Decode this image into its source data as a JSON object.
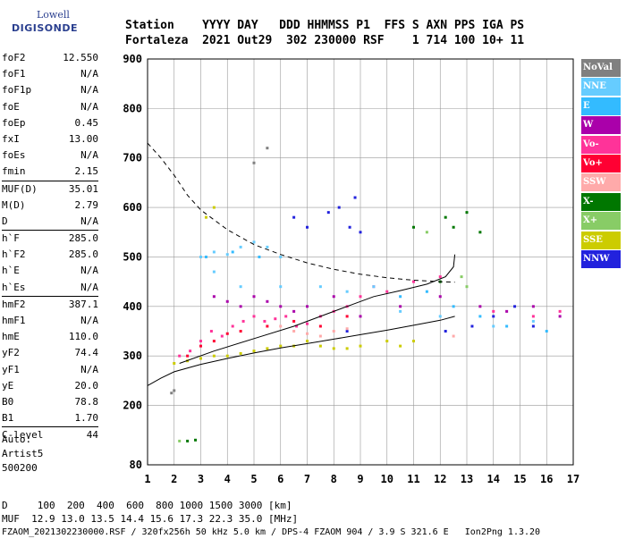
{
  "logo": {
    "line1": "Lowell",
    "line2": "DIGISONDE"
  },
  "header": {
    "labels": "Station    YYYY DAY   DDD HHMMSS P1  FFS S AXN PPS IGA PS",
    "values": "Fortaleza  2021 Out29  302 230000 RSF    1 714 100 10+ 11"
  },
  "params": [
    {
      "name": "foF2",
      "value": "12.550"
    },
    {
      "name": "foF1",
      "value": "N/A"
    },
    {
      "name": "foF1p",
      "value": "N/A"
    },
    {
      "name": "foE",
      "value": "N/A"
    },
    {
      "name": "foEp",
      "value": "0.45"
    },
    {
      "name": "fxI",
      "value": "13.00"
    },
    {
      "name": "foEs",
      "value": "N/A"
    },
    {
      "name": "fmin",
      "value": "2.15"
    },
    {
      "name": "MUF(D)",
      "value": "35.01",
      "sep": true
    },
    {
      "name": "M(D)",
      "value": "2.79"
    },
    {
      "name": "D",
      "value": "N/A"
    },
    {
      "name": "h`F",
      "value": "285.0",
      "sep": true
    },
    {
      "name": "h`F2",
      "value": "285.0"
    },
    {
      "name": "h`E",
      "value": "N/A"
    },
    {
      "name": "h`Es",
      "value": "N/A"
    },
    {
      "name": "hmF2",
      "value": "387.1",
      "sep": true
    },
    {
      "name": "hmF1",
      "value": "N/A"
    },
    {
      "name": "hmE",
      "value": "110.0"
    },
    {
      "name": "yF2",
      "value": "74.4"
    },
    {
      "name": "yF1",
      "value": "N/A"
    },
    {
      "name": "yE",
      "value": "20.0"
    },
    {
      "name": "B0",
      "value": "78.8"
    },
    {
      "name": "B1",
      "value": "1.70"
    },
    {
      "name": "C-level",
      "value": "44",
      "sep": true
    }
  ],
  "auto": {
    "line1": "Auto:",
    "line2": "Artist5",
    "line3": "500200"
  },
  "footer": {
    "line1": "D     100  200  400  600  800 1000 1500 3000 [km]",
    "line2": "MUF  12.9 13.0 13.5 14.4 15.6 17.3 22.3 35.0 [MHz]",
    "line3": "FZAOM_2021302230000.RSF / 320fx256h 50 kHz 5.0 km / DPS-4 FZAOM 904 / 3.9 S 321.6 E   Ion2Png 1.3.20"
  },
  "legend": [
    {
      "label": "NoVal",
      "color": "#808080"
    },
    {
      "label": "NNE",
      "color": "#66ccff"
    },
    {
      "label": "E",
      "color": "#33bbff"
    },
    {
      "label": "W",
      "color": "#aa00aa"
    },
    {
      "label": "Vo-",
      "color": "#ff3399"
    },
    {
      "label": "Vo+",
      "color": "#ff0033"
    },
    {
      "label": "SSW",
      "color": "#ffaaaa"
    },
    {
      "label": "X-",
      "color": "#007700"
    },
    {
      "label": "X+",
      "color": "#88cc66"
    },
    {
      "label": "SSE",
      "color": "#cccc00"
    },
    {
      "label": "NNW",
      "color": "#2222dd"
    }
  ],
  "chart_data": {
    "type": "scatter",
    "x_unit": "MHz",
    "y_unit": "km",
    "xlim": [
      1,
      17
    ],
    "ylim": [
      80,
      900
    ],
    "x_ticks": [
      1,
      2,
      3,
      4,
      5,
      6,
      7,
      8,
      9,
      10,
      11,
      12,
      13,
      14,
      15,
      16,
      17
    ],
    "y_ticks": [
      80,
      200,
      300,
      400,
      500,
      600,
      700,
      800,
      900
    ],
    "grid": true,
    "series": [
      {
        "name": "Vo-",
        "color": "#ff3399",
        "points": [
          [
            2.2,
            300
          ],
          [
            2.6,
            310
          ],
          [
            3.0,
            330
          ],
          [
            3.4,
            350
          ],
          [
            3.8,
            340
          ],
          [
            4.2,
            360
          ],
          [
            4.6,
            370
          ],
          [
            5.0,
            380
          ],
          [
            5.4,
            370
          ],
          [
            5.8,
            375
          ],
          [
            6.2,
            380
          ],
          [
            6.6,
            360
          ],
          [
            7.0,
            365
          ],
          [
            7.5,
            380
          ],
          [
            8.0,
            390
          ],
          [
            8.5,
            400
          ],
          [
            9.0,
            420
          ],
          [
            9.5,
            440
          ],
          [
            10.0,
            430
          ],
          [
            11.0,
            450
          ],
          [
            12.0,
            460
          ],
          [
            14.0,
            390
          ],
          [
            15.5,
            380
          ],
          [
            16.5,
            390
          ]
        ]
      },
      {
        "name": "W",
        "color": "#aa00aa",
        "points": [
          [
            3.5,
            420
          ],
          [
            4.0,
            410
          ],
          [
            4.5,
            400
          ],
          [
            5.0,
            420
          ],
          [
            5.5,
            410
          ],
          [
            6.0,
            400
          ],
          [
            6.5,
            390
          ],
          [
            7.0,
            400
          ],
          [
            8.0,
            420
          ],
          [
            9.0,
            380
          ],
          [
            10.5,
            400
          ],
          [
            12.0,
            420
          ],
          [
            13.5,
            400
          ],
          [
            14.5,
            390
          ],
          [
            15.5,
            400
          ],
          [
            16.5,
            380
          ]
        ]
      },
      {
        "name": "Vo+",
        "color": "#ff0033",
        "points": [
          [
            2.5,
            300
          ],
          [
            3.0,
            320
          ],
          [
            3.5,
            330
          ],
          [
            4.0,
            345
          ],
          [
            4.5,
            350
          ],
          [
            5.5,
            360
          ],
          [
            6.5,
            370
          ],
          [
            7.5,
            360
          ],
          [
            8.5,
            380
          ]
        ]
      },
      {
        "name": "SSE",
        "color": "#cccc00",
        "points": [
          [
            2.0,
            285
          ],
          [
            2.5,
            290
          ],
          [
            3.0,
            295
          ],
          [
            3.5,
            300
          ],
          [
            4.0,
            300
          ],
          [
            4.5,
            305
          ],
          [
            5.0,
            310
          ],
          [
            5.5,
            315
          ],
          [
            6.0,
            320
          ],
          [
            6.5,
            320
          ],
          [
            7.0,
            330
          ],
          [
            7.5,
            320
          ],
          [
            8.0,
            315
          ],
          [
            8.5,
            315
          ],
          [
            9.0,
            320
          ],
          [
            10.0,
            330
          ],
          [
            10.5,
            320
          ],
          [
            11.0,
            330
          ],
          [
            3.2,
            580
          ],
          [
            3.5,
            600
          ]
        ]
      },
      {
        "name": "NNE",
        "color": "#66ccff",
        "points": [
          [
            3.0,
            500
          ],
          [
            3.5,
            510
          ],
          [
            4.0,
            505
          ],
          [
            4.5,
            520
          ],
          [
            5.0,
            530
          ],
          [
            5.5,
            520
          ],
          [
            6.0,
            500
          ],
          [
            3.5,
            470
          ],
          [
            4.5,
            440
          ],
          [
            6.0,
            440
          ],
          [
            7.5,
            440
          ],
          [
            8.5,
            430
          ],
          [
            9.5,
            440
          ],
          [
            10.5,
            390
          ],
          [
            12.0,
            380
          ],
          [
            14.0,
            360
          ],
          [
            15.5,
            370
          ]
        ]
      },
      {
        "name": "E",
        "color": "#33bbff",
        "points": [
          [
            3.2,
            500
          ],
          [
            4.2,
            510
          ],
          [
            5.2,
            500
          ],
          [
            10.5,
            420
          ],
          [
            11.5,
            430
          ],
          [
            12.5,
            400
          ],
          [
            13.5,
            380
          ],
          [
            14.5,
            360
          ],
          [
            16.0,
            350
          ]
        ]
      },
      {
        "name": "NNW",
        "color": "#2222dd",
        "points": [
          [
            6.5,
            580
          ],
          [
            7.0,
            560
          ],
          [
            7.8,
            590
          ],
          [
            8.2,
            600
          ],
          [
            8.6,
            560
          ],
          [
            9.0,
            550
          ],
          [
            8.8,
            620
          ],
          [
            8.5,
            350
          ],
          [
            12.2,
            350
          ],
          [
            13.2,
            360
          ],
          [
            14.0,
            380
          ],
          [
            14.8,
            400
          ],
          [
            15.5,
            360
          ]
        ]
      },
      {
        "name": "SSW",
        "color": "#ffaaaa",
        "points": [
          [
            6.0,
            360
          ],
          [
            6.5,
            350
          ],
          [
            7.0,
            345
          ],
          [
            7.5,
            340
          ],
          [
            8.0,
            350
          ],
          [
            8.5,
            355
          ],
          [
            12.5,
            340
          ]
        ]
      },
      {
        "name": "X-",
        "color": "#007700",
        "points": [
          [
            2.5,
            128
          ],
          [
            2.8,
            130
          ],
          [
            11.0,
            560
          ],
          [
            12.2,
            580
          ],
          [
            12.5,
            560
          ],
          [
            13.0,
            590
          ],
          [
            13.5,
            550
          ],
          [
            12.0,
            450
          ]
        ]
      },
      {
        "name": "X+",
        "color": "#88cc66",
        "points": [
          [
            2.2,
            128
          ],
          [
            11.5,
            550
          ],
          [
            12.8,
            460
          ],
          [
            13.0,
            440
          ]
        ]
      },
      {
        "name": "NoVal",
        "color": "#808080",
        "points": [
          [
            1.9,
            225
          ],
          [
            2.0,
            230
          ],
          [
            5.5,
            720
          ],
          [
            5.0,
            690
          ]
        ]
      }
    ],
    "curves": [
      {
        "style": "dashed",
        "points": [
          [
            1.0,
            730
          ],
          [
            1.5,
            700
          ],
          [
            2.0,
            665
          ],
          [
            2.5,
            625
          ],
          [
            3.0,
            595
          ],
          [
            4.0,
            555
          ],
          [
            5.0,
            525
          ],
          [
            6.0,
            505
          ],
          [
            7.0,
            488
          ],
          [
            8.0,
            475
          ],
          [
            9.0,
            465
          ],
          [
            10.0,
            458
          ],
          [
            11.0,
            453
          ],
          [
            12.0,
            450
          ],
          [
            12.55,
            449
          ]
        ]
      },
      {
        "style": "solid",
        "points": [
          [
            1.0,
            240
          ],
          [
            1.5,
            255
          ],
          [
            2.0,
            268
          ],
          [
            3.0,
            283
          ],
          [
            4.0,
            295
          ],
          [
            5.0,
            306
          ],
          [
            6.0,
            316
          ],
          [
            7.0,
            325
          ],
          [
            8.0,
            334
          ],
          [
            9.0,
            343
          ],
          [
            10.0,
            352
          ],
          [
            11.0,
            362
          ],
          [
            12.0,
            372
          ],
          [
            12.55,
            380
          ]
        ]
      },
      {
        "style": "solid",
        "points": [
          [
            2.2,
            285
          ],
          [
            3.5,
            310
          ],
          [
            5.0,
            335
          ],
          [
            6.5,
            360
          ],
          [
            7.5,
            380
          ],
          [
            8.5,
            400
          ],
          [
            9.5,
            420
          ],
          [
            10.5,
            432
          ],
          [
            11.5,
            445
          ],
          [
            12.2,
            460
          ],
          [
            12.5,
            480
          ],
          [
            12.55,
            505
          ]
        ]
      }
    ]
  }
}
